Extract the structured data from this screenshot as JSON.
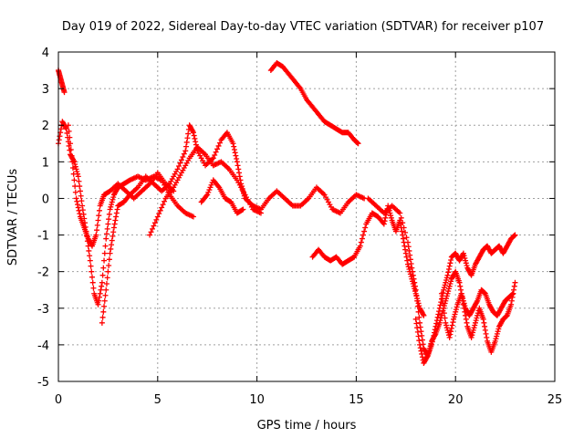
{
  "chart_data": {
    "type": "scatter",
    "title": "Day 019 of 2022, Sidereal Day-to-day VTEC variation (SDTVAR) for receiver p107",
    "xlabel": "GPS time / hours",
    "ylabel": "SDTVAR / TECUs",
    "xlim": [
      0,
      25
    ],
    "ylim": [
      -5,
      4
    ],
    "xticks": [
      0,
      5,
      10,
      15,
      20,
      25
    ],
    "yticks": [
      -5,
      -4,
      -3,
      -2,
      -1,
      0,
      1,
      2,
      3,
      4
    ],
    "grid": true,
    "marker": "+",
    "colors": {
      "series": "#ff0000",
      "grid": "#a0a0a0",
      "axis": "#000000"
    },
    "series": [
      {
        "name": "satellite-track-1",
        "points": [
          [
            0.0,
            3.5
          ],
          [
            0.1,
            3.3
          ],
          [
            0.2,
            3.1
          ],
          [
            0.3,
            2.9
          ]
        ]
      },
      {
        "name": "satellite-track-2",
        "points": [
          [
            0.0,
            1.5
          ],
          [
            0.2,
            2.1
          ],
          [
            0.4,
            1.9
          ],
          [
            0.6,
            1.2
          ],
          [
            0.8,
            1.0
          ],
          [
            1.0,
            0.6
          ],
          [
            1.2,
            -0.2
          ],
          [
            1.4,
            -0.9
          ],
          [
            1.6,
            -1.7
          ],
          [
            1.8,
            -2.6
          ],
          [
            2.0,
            -2.9
          ],
          [
            2.2,
            -2.3
          ],
          [
            2.4,
            -1.1
          ],
          [
            2.6,
            -0.3
          ],
          [
            2.8,
            0.1
          ],
          [
            3.0,
            0.3
          ],
          [
            3.3,
            0.4
          ],
          [
            3.6,
            0.5
          ],
          [
            4.0,
            0.6
          ],
          [
            4.4,
            0.5
          ],
          [
            4.8,
            0.6
          ],
          [
            5.2,
            0.5
          ],
          [
            5.6,
            0.1
          ],
          [
            6.0,
            -0.2
          ],
          [
            6.4,
            -0.4
          ],
          [
            6.8,
            -0.5
          ]
        ]
      },
      {
        "name": "satellite-track-3",
        "points": [
          [
            0.5,
            2.0
          ],
          [
            0.7,
            1.0
          ],
          [
            0.9,
            0.0
          ],
          [
            1.1,
            -0.5
          ],
          [
            1.3,
            -0.8
          ],
          [
            1.5,
            -1.1
          ],
          [
            1.7,
            -1.3
          ],
          [
            1.9,
            -1.0
          ],
          [
            2.1,
            -0.2
          ],
          [
            2.3,
            0.1
          ],
          [
            2.6,
            0.2
          ],
          [
            3.0,
            0.4
          ],
          [
            3.4,
            0.2
          ],
          [
            3.8,
            0.0
          ],
          [
            4.2,
            0.2
          ],
          [
            4.6,
            0.4
          ],
          [
            5.0,
            0.7
          ],
          [
            5.4,
            0.4
          ],
          [
            5.8,
            0.2
          ]
        ]
      },
      {
        "name": "satellite-track-4",
        "points": [
          [
            2.2,
            -3.4
          ],
          [
            2.4,
            -2.5
          ],
          [
            2.6,
            -1.5
          ],
          [
            2.8,
            -0.8
          ],
          [
            3.0,
            -0.2
          ],
          [
            3.3,
            -0.1
          ],
          [
            3.6,
            0.1
          ],
          [
            4.0,
            0.3
          ],
          [
            4.4,
            0.6
          ],
          [
            4.8,
            0.4
          ],
          [
            5.2,
            0.2
          ],
          [
            5.6,
            0.4
          ],
          [
            6.0,
            0.8
          ],
          [
            6.4,
            1.3
          ],
          [
            6.6,
            2.0
          ],
          [
            6.8,
            1.8
          ],
          [
            7.0,
            1.3
          ],
          [
            7.4,
            0.9
          ],
          [
            7.8,
            1.1
          ],
          [
            8.2,
            1.6
          ],
          [
            8.5,
            1.8
          ],
          [
            8.8,
            1.5
          ],
          [
            9.0,
            1.0
          ],
          [
            9.2,
            0.4
          ],
          [
            9.4,
            0.0
          ],
          [
            9.8,
            -0.2
          ],
          [
            10.2,
            -0.3
          ],
          [
            10.6,
            0.0
          ],
          [
            11.0,
            0.2
          ],
          [
            11.4,
            0.0
          ],
          [
            11.8,
            -0.2
          ],
          [
            12.2,
            -0.2
          ],
          [
            12.6,
            0.0
          ],
          [
            13.0,
            0.3
          ],
          [
            13.4,
            0.1
          ],
          [
            13.8,
            -0.3
          ],
          [
            14.2,
            -0.4
          ],
          [
            14.6,
            -0.1
          ],
          [
            15.0,
            0.1
          ],
          [
            15.4,
            0.0
          ]
        ]
      },
      {
        "name": "satellite-track-5",
        "points": [
          [
            4.6,
            -1.0
          ],
          [
            5.0,
            -0.5
          ],
          [
            5.4,
            0.0
          ],
          [
            5.8,
            0.3
          ],
          [
            6.2,
            0.7
          ],
          [
            6.6,
            1.1
          ],
          [
            7.0,
            1.4
          ],
          [
            7.4,
            1.2
          ],
          [
            7.8,
            0.9
          ],
          [
            8.2,
            1.0
          ],
          [
            8.6,
            0.8
          ],
          [
            9.0,
            0.5
          ],
          [
            9.4,
            0.1
          ],
          [
            9.8,
            -0.3
          ],
          [
            10.2,
            -0.4
          ]
        ]
      },
      {
        "name": "satellite-track-6",
        "points": [
          [
            7.2,
            -0.1
          ],
          [
            7.5,
            0.1
          ],
          [
            7.8,
            0.5
          ],
          [
            8.1,
            0.3
          ],
          [
            8.4,
            0.0
          ],
          [
            8.7,
            -0.1
          ],
          [
            9.0,
            -0.4
          ],
          [
            9.3,
            -0.3
          ]
        ]
      },
      {
        "name": "satellite-track-7",
        "points": [
          [
            10.7,
            3.5
          ],
          [
            11.0,
            3.7
          ],
          [
            11.3,
            3.6
          ],
          [
            11.6,
            3.4
          ],
          [
            11.9,
            3.2
          ],
          [
            12.2,
            3.0
          ],
          [
            12.5,
            2.7
          ],
          [
            12.8,
            2.5
          ],
          [
            13.1,
            2.3
          ],
          [
            13.4,
            2.1
          ],
          [
            13.7,
            2.0
          ],
          [
            14.0,
            1.9
          ],
          [
            14.3,
            1.8
          ],
          [
            14.6,
            1.8
          ],
          [
            14.9,
            1.6
          ],
          [
            15.1,
            1.5
          ]
        ]
      },
      {
        "name": "satellite-track-8",
        "points": [
          [
            12.8,
            -1.6
          ],
          [
            13.1,
            -1.4
          ],
          [
            13.4,
            -1.6
          ],
          [
            13.7,
            -1.7
          ],
          [
            14.0,
            -1.6
          ],
          [
            14.3,
            -1.8
          ],
          [
            14.6,
            -1.7
          ],
          [
            14.9,
            -1.6
          ],
          [
            15.2,
            -1.3
          ],
          [
            15.5,
            -0.7
          ],
          [
            15.8,
            -0.4
          ],
          [
            16.1,
            -0.5
          ],
          [
            16.4,
            -0.7
          ],
          [
            16.6,
            -0.2
          ],
          [
            16.8,
            -0.6
          ],
          [
            17.0,
            -0.9
          ],
          [
            17.2,
            -0.6
          ],
          [
            17.4,
            -1.2
          ],
          [
            17.6,
            -1.8
          ],
          [
            17.8,
            -2.2
          ],
          [
            18.0,
            -2.6
          ],
          [
            18.2,
            -3.0
          ],
          [
            18.4,
            -3.2
          ]
        ]
      },
      {
        "name": "satellite-track-9",
        "points": [
          [
            15.6,
            0.0
          ],
          [
            16.0,
            -0.2
          ],
          [
            16.4,
            -0.4
          ],
          [
            16.8,
            -0.2
          ],
          [
            17.2,
            -0.4
          ],
          [
            17.6,
            -1.2
          ],
          [
            17.8,
            -1.9
          ],
          [
            18.0,
            -2.5
          ],
          [
            18.2,
            -3.4
          ],
          [
            18.4,
            -4.1
          ],
          [
            18.6,
            -4.3
          ],
          [
            18.8,
            -4.0
          ],
          [
            19.0,
            -3.5
          ],
          [
            19.2,
            -3.0
          ],
          [
            19.4,
            -2.5
          ],
          [
            19.6,
            -2.1
          ],
          [
            19.8,
            -1.6
          ],
          [
            20.0,
            -1.5
          ],
          [
            20.2,
            -1.7
          ],
          [
            20.4,
            -1.5
          ],
          [
            20.6,
            -1.9
          ],
          [
            20.8,
            -2.1
          ],
          [
            21.0,
            -1.8
          ],
          [
            21.2,
            -1.6
          ],
          [
            21.4,
            -1.4
          ],
          [
            21.6,
            -1.3
          ],
          [
            21.8,
            -1.5
          ],
          [
            22.0,
            -1.4
          ],
          [
            22.2,
            -1.3
          ],
          [
            22.4,
            -1.5
          ],
          [
            22.6,
            -1.3
          ],
          [
            22.8,
            -1.1
          ],
          [
            23.0,
            -1.0
          ]
        ]
      },
      {
        "name": "satellite-track-10",
        "points": [
          [
            18.0,
            -3.3
          ],
          [
            18.2,
            -4.0
          ],
          [
            18.4,
            -4.5
          ],
          [
            18.6,
            -4.3
          ],
          [
            18.8,
            -3.9
          ],
          [
            19.0,
            -3.7
          ],
          [
            19.2,
            -3.4
          ],
          [
            19.4,
            -3.0
          ],
          [
            19.6,
            -2.6
          ],
          [
            19.8,
            -2.2
          ],
          [
            20.0,
            -2.0
          ],
          [
            20.2,
            -2.3
          ],
          [
            20.4,
            -2.9
          ],
          [
            20.6,
            -3.5
          ],
          [
            20.8,
            -3.8
          ],
          [
            21.0,
            -3.4
          ],
          [
            21.2,
            -3.0
          ],
          [
            21.4,
            -3.3
          ],
          [
            21.6,
            -3.9
          ],
          [
            21.8,
            -4.2
          ],
          [
            22.0,
            -3.9
          ],
          [
            22.2,
            -3.5
          ],
          [
            22.4,
            -3.3
          ],
          [
            22.6,
            -3.2
          ],
          [
            22.8,
            -2.9
          ],
          [
            23.0,
            -2.3
          ]
        ]
      },
      {
        "name": "satellite-track-11",
        "points": [
          [
            19.3,
            -2.6
          ],
          [
            19.5,
            -3.4
          ],
          [
            19.7,
            -3.8
          ],
          [
            19.9,
            -3.3
          ],
          [
            20.1,
            -2.9
          ],
          [
            20.3,
            -2.6
          ],
          [
            20.5,
            -3.0
          ],
          [
            20.7,
            -3.2
          ],
          [
            20.9,
            -3.0
          ],
          [
            21.1,
            -2.8
          ],
          [
            21.3,
            -2.5
          ],
          [
            21.5,
            -2.6
          ],
          [
            21.7,
            -2.9
          ],
          [
            21.9,
            -3.1
          ],
          [
            22.1,
            -3.2
          ],
          [
            22.3,
            -3.0
          ],
          [
            22.5,
            -2.8
          ],
          [
            22.7,
            -2.7
          ],
          [
            22.9,
            -2.6
          ]
        ]
      }
    ]
  }
}
